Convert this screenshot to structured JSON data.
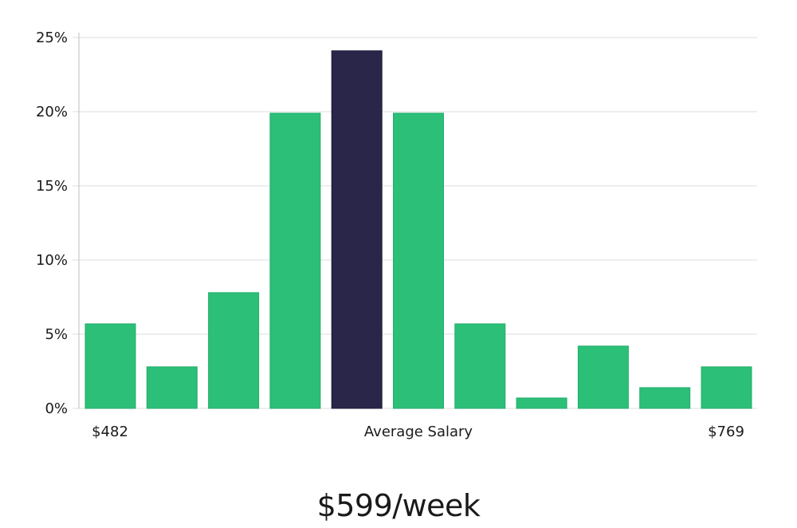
{
  "chart_data": {
    "type": "bar",
    "values": [
      5.7,
      2.8,
      7.8,
      19.9,
      24.1,
      19.9,
      5.7,
      0.7,
      4.2,
      1.4,
      2.8
    ],
    "highlight_index": 4,
    "ylim": [
      0,
      25
    ],
    "y_ticks": [
      {
        "value": 0,
        "label": "0%"
      },
      {
        "value": 5,
        "label": "5%"
      },
      {
        "value": 10,
        "label": "10%"
      },
      {
        "value": 15,
        "label": "15%"
      },
      {
        "value": 20,
        "label": "20%"
      },
      {
        "value": 25,
        "label": "25%"
      }
    ],
    "x_labels": {
      "min": "$482",
      "center": "Average Salary",
      "max": "$769"
    },
    "grid": true,
    "colors": {
      "bar": "#2bbf78",
      "highlight": "#29264a",
      "grid": "#e3e3e3",
      "axis": "#cccccc"
    }
  },
  "headline": "$599/week"
}
